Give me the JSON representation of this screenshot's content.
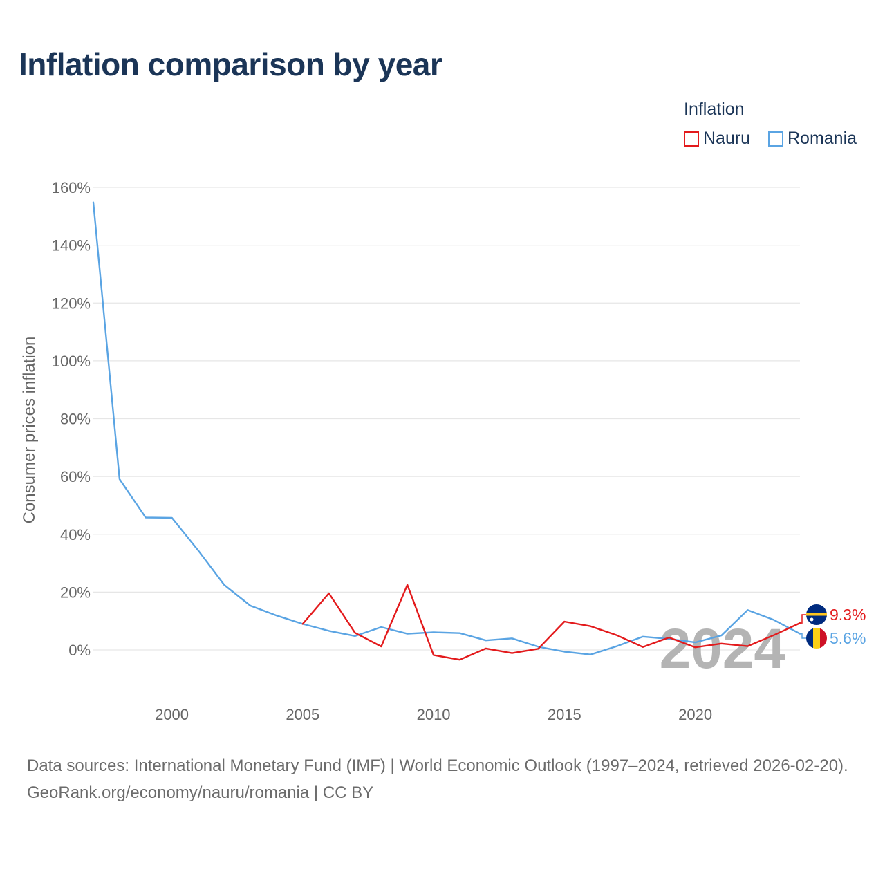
{
  "title": "Inflation comparison by year",
  "legend": {
    "title": "Inflation",
    "items": [
      {
        "label": "Nauru",
        "color": "#e31a1c"
      },
      {
        "label": "Romania",
        "color": "#5aa4e3"
      }
    ]
  },
  "chart_data": {
    "type": "line",
    "title": "Inflation comparison by year",
    "xlabel": "",
    "ylabel": "Consumer prices inflation",
    "xlim": [
      1997,
      2024
    ],
    "ylim": [
      -15,
      160
    ],
    "y_ticks": [
      {
        "value": 160,
        "label": "160%"
      },
      {
        "value": 140,
        "label": "140%"
      },
      {
        "value": 120,
        "label": "120%"
      },
      {
        "value": 100,
        "label": "100%"
      },
      {
        "value": 80,
        "label": "80%"
      },
      {
        "value": 60,
        "label": "60%"
      },
      {
        "value": 40,
        "label": "40%"
      },
      {
        "value": 20,
        "label": "20%"
      },
      {
        "value": 0,
        "label": "0%"
      }
    ],
    "x_ticks": [
      {
        "value": 2000,
        "label": "2000"
      },
      {
        "value": 2005,
        "label": "2005"
      },
      {
        "value": 2010,
        "label": "2010"
      },
      {
        "value": 2015,
        "label": "2015"
      },
      {
        "value": 2020,
        "label": "2020"
      }
    ],
    "grid": true,
    "annotation_year": "2024",
    "series": [
      {
        "name": "Nauru",
        "color": "#e31a1c",
        "end_label": "9.3%",
        "x": [
          2005,
          2006,
          2007,
          2008,
          2009,
          2010,
          2011,
          2012,
          2013,
          2014,
          2015,
          2016,
          2017,
          2018,
          2019,
          2020,
          2021,
          2022,
          2023,
          2024
        ],
        "values": [
          9.0,
          19.6,
          5.9,
          1.2,
          22.5,
          -1.8,
          -3.4,
          0.5,
          -1.1,
          0.4,
          9.8,
          8.2,
          5.1,
          1.0,
          4.3,
          0.9,
          2.2,
          1.3,
          5.1,
          9.3
        ]
      },
      {
        "name": "Romania",
        "color": "#5aa4e3",
        "end_label": "5.6%",
        "x": [
          1997,
          1998,
          1999,
          2000,
          2001,
          2002,
          2003,
          2004,
          2005,
          2006,
          2007,
          2008,
          2009,
          2010,
          2011,
          2012,
          2013,
          2014,
          2015,
          2016,
          2017,
          2018,
          2019,
          2020,
          2021,
          2022,
          2023,
          2024
        ],
        "values": [
          154.8,
          59.1,
          45.8,
          45.7,
          34.5,
          22.5,
          15.3,
          11.9,
          9.0,
          6.6,
          4.8,
          7.9,
          5.6,
          6.1,
          5.8,
          3.3,
          4.0,
          1.1,
          -0.6,
          -1.6,
          1.3,
          4.6,
          3.8,
          2.6,
          5.0,
          13.8,
          10.4,
          5.6
        ]
      }
    ]
  },
  "footer": {
    "source": "Data sources: International Monetary Fund (IMF) | World Economic Outlook (1997–2024, retrieved 2026-02-20).",
    "attribution": "GeoRank.org/economy/nauru/romania | CC BY"
  }
}
